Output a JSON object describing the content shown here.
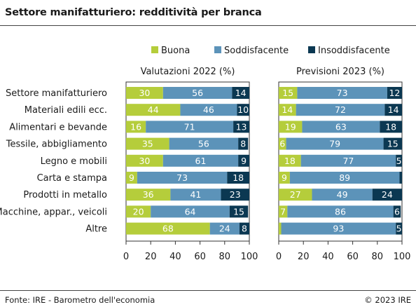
{
  "header": {
    "title": "Settore manifatturiero: redditività per branca"
  },
  "footer": {
    "source": "Fonte: IRE - Barometro dell'economia",
    "copyright": "© 2023 IRE"
  },
  "chart_data": {
    "type": "bar",
    "orientation": "horizontal",
    "stacked": true,
    "title": "Settore manifatturiero: redditività per branca",
    "legend": [
      {
        "name": "Buona",
        "color": "#b5cd3b"
      },
      {
        "name": "Soddisfacente",
        "color": "#5c93b9"
      },
      {
        "name": "Insoddisfacente",
        "color": "#0b3852"
      }
    ],
    "legend_placement": "top",
    "categories": [
      "Settore manifatturiero",
      "Materiali edili ecc.",
      "Alimentari e bevande",
      "Tessile, abbigliamento",
      "Legno e mobili",
      "Carta e stampa",
      "Prodotti in metallo",
      "Macchine, appar., veicoli",
      "Altre"
    ],
    "xlim": [
      0,
      100
    ],
    "xticks": [
      0,
      20,
      40,
      60,
      80,
      100
    ],
    "panels": [
      {
        "title": "Valutazioni 2022 (%)",
        "series": [
          {
            "name": "Buona",
            "values": [
              30,
              44,
              16,
              35,
              30,
              9,
              36,
              20,
              68
            ]
          },
          {
            "name": "Soddisfacente",
            "values": [
              56,
              46,
              71,
              56,
              61,
              73,
              41,
              64,
              24
            ]
          },
          {
            "name": "Insoddisfacente",
            "values": [
              14,
              10,
              13,
              8,
              9,
              18,
              23,
              15,
              8
            ]
          }
        ]
      },
      {
        "title": "Previsioni 2023 (%)",
        "series": [
          {
            "name": "Buona",
            "values": [
              15,
              14,
              19,
              6,
              18,
              9,
              27,
              7,
              2
            ]
          },
          {
            "name": "Soddisfacente",
            "values": [
              73,
              72,
              63,
              79,
              77,
              89,
              49,
              86,
              93
            ]
          },
          {
            "name": "Insoddisfacente",
            "values": [
              12,
              14,
              18,
              15,
              5,
              2,
              24,
              6,
              5
            ]
          }
        ]
      }
    ],
    "labels_hidden_below": 4
  }
}
